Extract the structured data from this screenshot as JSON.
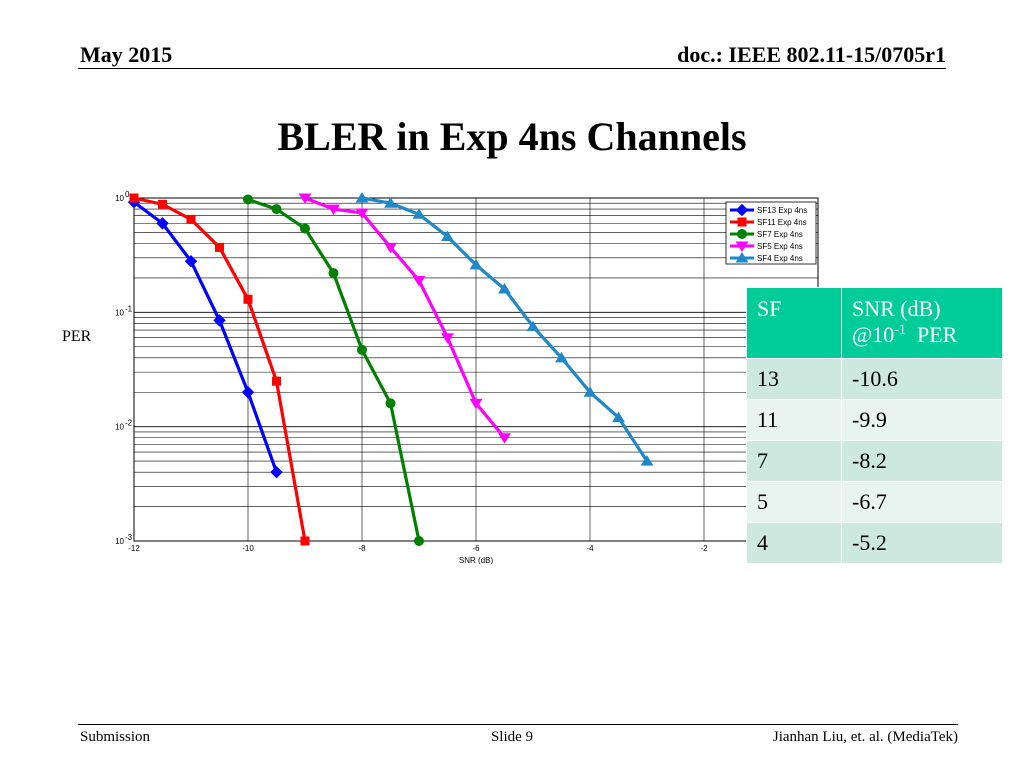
{
  "header": {
    "date": "May 2015",
    "doc": "doc.: IEEE 802.11-15/0705r1"
  },
  "title": "BLER in Exp 4ns Channels",
  "chart_data": {
    "type": "line",
    "xlabel": "SNR (dB)",
    "ylabel": "PER",
    "xlim": [
      -12,
      0
    ],
    "ylim": [
      0.001,
      1
    ],
    "yscale": "log",
    "xticks": [
      -12,
      -10,
      -8,
      -6,
      -4,
      -2
    ],
    "yticks": [
      {
        "base": "10",
        "exp": "0"
      },
      {
        "base": "10",
        "exp": "-1"
      },
      {
        "base": "10",
        "exp": "-2"
      },
      {
        "base": "10",
        "exp": "-3"
      }
    ],
    "grid": true,
    "legend_position": "top-right",
    "series": [
      {
        "name": "SF13 Exp 4ns",
        "color": "#0000ff",
        "marker": "diamond",
        "x": [
          -12,
          -11.5,
          -11,
          -10.5,
          -10,
          -9.5
        ],
        "y": [
          0.92,
          0.6,
          0.28,
          0.085,
          0.02,
          0.004
        ]
      },
      {
        "name": "SF11 Exp 4ns",
        "color": "#ff0000",
        "marker": "square",
        "x": [
          -12,
          -11.5,
          -11,
          -10.5,
          -10,
          -9.5,
          -9
        ],
        "y": [
          1.0,
          0.88,
          0.65,
          0.37,
          0.13,
          0.025,
          0.001
        ]
      },
      {
        "name": "SF7 Exp 4ns",
        "color": "#008000",
        "marker": "circle",
        "x": [
          -10,
          -9.5,
          -9,
          -8.5,
          -8,
          -7.5,
          -7
        ],
        "y": [
          0.97,
          0.8,
          0.54,
          0.22,
          0.047,
          0.016,
          0.001
        ]
      },
      {
        "name": "SF5 Exp 4ns",
        "color": "#ff00ff",
        "marker": "triangle-down",
        "x": [
          -9,
          -8.5,
          -8,
          -7.5,
          -7,
          -6.5,
          -6,
          -5.5
        ],
        "y": [
          1.0,
          0.8,
          0.74,
          0.37,
          0.19,
          0.06,
          0.016,
          0.008
        ]
      },
      {
        "name": "SF4 Exp 4ns",
        "color": "#1e88c8",
        "marker": "triangle-up",
        "x": [
          -8,
          -7.5,
          -7,
          -6.5,
          -6,
          -5.5,
          -5,
          -4.5,
          -4,
          -3.5,
          -3
        ],
        "y": [
          1.0,
          0.9,
          0.72,
          0.46,
          0.26,
          0.16,
          0.075,
          0.04,
          0.02,
          0.012,
          0.005
        ]
      }
    ]
  },
  "table": {
    "headers": [
      "SF",
      "SNR (dB)",
      "@10",
      "-1",
      "PER"
    ],
    "rows": [
      [
        "13",
        "-10.6"
      ],
      [
        "11",
        "-9.9"
      ],
      [
        "7",
        "-8.2"
      ],
      [
        "5",
        "-6.7"
      ],
      [
        "4",
        "-5.2"
      ]
    ]
  },
  "footer": {
    "left": "Submission",
    "center": "Slide 9",
    "right": "Jianhan Liu, et. al. (MediaTek)"
  }
}
